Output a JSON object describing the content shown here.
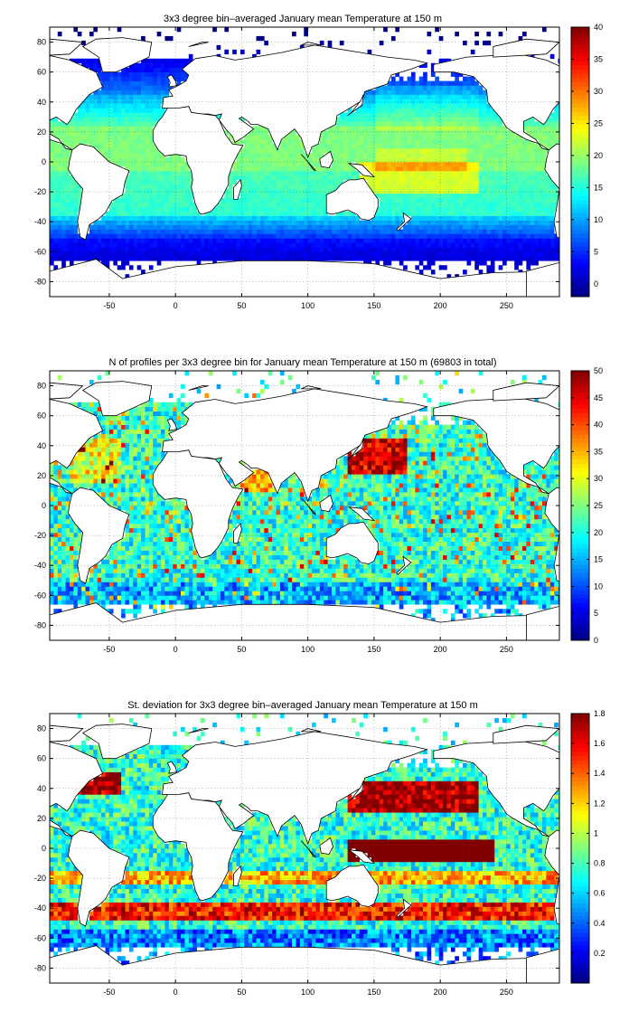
{
  "figure": {
    "panels": [
      {
        "id": "temperature",
        "title": "3x3 degree bin–averaged January mean Temperature at 150 m",
        "colorbar": {
          "min": -2,
          "max": 40,
          "ticks": [
            "0",
            "5",
            "10",
            "15",
            "20",
            "25",
            "30",
            "35",
            "40"
          ],
          "tick_values": [
            0,
            5,
            10,
            15,
            20,
            25,
            30,
            35,
            40
          ]
        }
      },
      {
        "id": "profiles",
        "title": "N of profiles per 3x3 degree bin for January mean Temperature at 150 m (69803 in total)",
        "colorbar": {
          "min": 0,
          "max": 50,
          "ticks": [
            "0",
            "5",
            "10",
            "15",
            "20",
            "25",
            "30",
            "35",
            "40",
            "45",
            "50"
          ],
          "tick_values": [
            0,
            5,
            10,
            15,
            20,
            25,
            30,
            35,
            40,
            45,
            50
          ]
        }
      },
      {
        "id": "stdev",
        "title": "St. deviation for 3x3 degree bin–averaged January mean Temperature at 150 m",
        "colorbar": {
          "min": 0,
          "max": 1.8,
          "ticks": [
            "0.2",
            "0.4",
            "0.6",
            "0.8",
            "1",
            "1.2",
            "1.4",
            "1.6",
            "1.8"
          ],
          "tick_values": [
            0.2,
            0.4,
            0.6,
            0.8,
            1,
            1.2,
            1.4,
            1.6,
            1.8
          ]
        }
      }
    ],
    "x_ticks": [
      "-50",
      "0",
      "50",
      "100",
      "150",
      "200",
      "250"
    ],
    "y_ticks": [
      "80",
      "60",
      "40",
      "20",
      "0",
      "-20",
      "-40",
      "-60",
      "-80"
    ]
  },
  "chart_data": [
    {
      "type": "heatmap",
      "title": "3x3 degree bin–averaged January mean Temperature at 150 m",
      "xlabel": "",
      "ylabel": "",
      "x_ticks": [
        -50,
        0,
        50,
        100,
        150,
        200,
        250
      ],
      "y_ticks": [
        -80,
        -60,
        -40,
        -20,
        0,
        20,
        40,
        60,
        80
      ],
      "xlim": [
        -95,
        290
      ],
      "ylim": [
        -90,
        90
      ],
      "grid": true,
      "bin_size_deg": 3,
      "colorbar": {
        "min": -2,
        "max": 40,
        "colormap": "jet"
      },
      "description_zones": [
        {
          "lat_range": [
            -5,
            25
          ],
          "value": 20
        },
        {
          "lat_range": [
            -15,
            -5
          ],
          "lon_range": [
            150,
            230
          ],
          "value": 25
        },
        {
          "lat_range": [
            25,
            45
          ],
          "value": 16
        },
        {
          "lat_range": [
            -35,
            -15
          ],
          "value": 17
        },
        {
          "lat_range": [
            -50,
            -35
          ],
          "value": 12
        },
        {
          "lat_range": [
            -65,
            -50
          ],
          "value": 4
        },
        {
          "lat_range": [
            45,
            70
          ],
          "value": 7
        }
      ]
    },
    {
      "type": "heatmap",
      "title": "N of profiles per 3x3 degree bin for January mean Temperature at 150 m (69803 in total)",
      "xlabel": "",
      "ylabel": "",
      "x_ticks": [
        -50,
        0,
        50,
        100,
        150,
        200,
        250
      ],
      "y_ticks": [
        -80,
        -60,
        -40,
        -20,
        0,
        20,
        40,
        60,
        80
      ],
      "xlim": [
        -95,
        290
      ],
      "ylim": [
        -90,
        90
      ],
      "grid": true,
      "bin_size_deg": 3,
      "total_profiles": 69803,
      "colorbar": {
        "min": 0,
        "max": 50,
        "colormap": "jet"
      }
    },
    {
      "type": "heatmap",
      "title": "St. deviation for 3x3 degree bin–averaged January mean Temperature at 150 m",
      "xlabel": "",
      "ylabel": "",
      "x_ticks": [
        -50,
        0,
        50,
        100,
        150,
        200,
        250
      ],
      "y_ticks": [
        -80,
        -60,
        -40,
        -20,
        0,
        20,
        40,
        60,
        80
      ],
      "xlim": [
        -95,
        290
      ],
      "ylim": [
        -90,
        90
      ],
      "grid": true,
      "bin_size_deg": 3,
      "colorbar": {
        "min": 0,
        "max": 1.8,
        "colormap": "jet"
      }
    }
  ]
}
